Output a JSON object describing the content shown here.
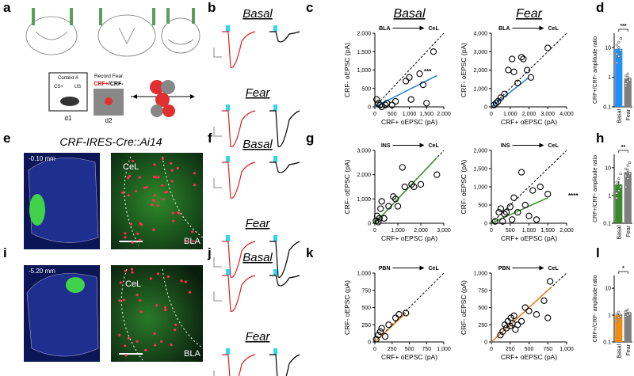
{
  "panel_labels": [
    "a",
    "b",
    "c",
    "d",
    "e",
    "f",
    "g",
    "h",
    "i",
    "j",
    "k",
    "l"
  ],
  "panel_a": {
    "context": "Context A",
    "cs": "CS+",
    "us": "US",
    "day1": "d1",
    "day2": "d2",
    "record": "Record Fear",
    "positive": "CRF+",
    "negative": "/CRF-"
  },
  "panel_e": {
    "title": "CRF-IRES-Cre::Ai14",
    "coordinate": "-0.10 mm",
    "region_1": "CeL",
    "region_2": "BLA"
  },
  "panel_i": {
    "coordinate": "-5.20 mm",
    "region_1": "CeL",
    "region_2": "BLA"
  },
  "traces": {
    "b": [
      "Basal",
      "Fear"
    ],
    "f": [
      "Basal",
      "Fear"
    ],
    "j": [
      "Basal",
      "Fear"
    ]
  },
  "chart_data": [
    {
      "type": "scatter",
      "title": "Basal",
      "pathway": [
        "BLA",
        "CeL"
      ],
      "xlabel": "CRF+ oEPSC (pA)",
      "ylabel": "CRF- oEPSC (pA)",
      "xlim": [
        0,
        2000
      ],
      "ylim": [
        0,
        2000
      ],
      "xticks": [
        0,
        500,
        {
          "value": 1000,
          "label": "1,000"
        },
        {
          "value": 1500,
          "label": "1,500"
        },
        {
          "value": 2000,
          "label": "2,000"
        }
      ],
      "yticks": [
        0,
        500,
        {
          "value": 1000,
          "label": "1,000"
        },
        {
          "value": 1500,
          "label": "1,500"
        },
        {
          "value": 2000,
          "label": "2,000"
        }
      ],
      "x": [
        50,
        100,
        150,
        200,
        300,
        350,
        500,
        600,
        900,
        1000,
        1050,
        1300,
        1400,
        1500,
        1700
      ],
      "y": [
        200,
        100,
        50,
        0,
        50,
        100,
        50,
        150,
        700,
        800,
        200,
        900,
        600,
        100,
        1500
      ],
      "fit": {
        "x": [
          0,
          1800
        ],
        "y": [
          0,
          850
        ]
      },
      "color": "#1a7fd6",
      "annotation": "***"
    },
    {
      "type": "scatter",
      "title": "Fear",
      "pathway": [
        "BLA",
        "CeL"
      ],
      "xlabel": "CRF+ oEPSC (pA)",
      "ylabel": "CRF- oEPSC (pA)",
      "xlim": [
        0,
        4000
      ],
      "ylim": [
        0,
        4000
      ],
      "xticks": [
        0,
        {
          "value": 1000,
          "label": "1,000"
        },
        {
          "value": 2000,
          "label": "2,000"
        },
        {
          "value": 3000,
          "label": "3,000"
        },
        {
          "value": 4000,
          "label": "4,000"
        }
      ],
      "yticks": [
        0,
        {
          "value": 1000,
          "label": "1,000"
        },
        {
          "value": 2000,
          "label": "2,000"
        },
        {
          "value": 3000,
          "label": "3,000"
        },
        {
          "value": 4000,
          "label": "4,000"
        }
      ],
      "x": [
        150,
        250,
        350,
        500,
        700,
        900,
        1100,
        1200,
        1400,
        1600,
        1700,
        1900,
        2100,
        3000
      ],
      "y": [
        100,
        200,
        300,
        500,
        700,
        2000,
        2600,
        1900,
        1300,
        2700,
        2600,
        2000,
        1600,
        3200
      ],
      "fit": {
        "x": [
          0,
          2000
        ],
        "y": [
          0,
          1600
        ]
      },
      "color": "#1a7fd6"
    },
    {
      "type": "bar",
      "log_scale": true,
      "ylabel": "CRF+/CRF- amplitude ratio",
      "categories": [
        "Basal",
        "Fear"
      ],
      "values": [
        9,
        0.9
      ],
      "errors": [
        2,
        0.1
      ],
      "points": [
        [
          3,
          5,
          8,
          12,
          15,
          20,
          6,
          10
        ],
        [
          0.5,
          0.7,
          0.9,
          1.1,
          1.3,
          0.8,
          0.6,
          1
        ]
      ],
      "colors": [
        "#1e90ff",
        "#7f7f7f"
      ],
      "ylim": [
        0.1,
        30
      ],
      "yticks": [
        0.1,
        1,
        10
      ],
      "annotation": "***"
    },
    {
      "type": "scatter",
      "pathway": [
        "INS",
        "CeL"
      ],
      "xlabel": "CRF+ oEPSC (pA)",
      "ylabel": "CRF- oEPSC (pA)",
      "xlim": [
        0,
        3000
      ],
      "ylim": [
        0,
        3000
      ],
      "xticks": [
        0,
        {
          "value": 1000,
          "label": "1,000"
        },
        {
          "value": 2000,
          "label": "2,000"
        },
        {
          "value": 3000,
          "label": "3,000"
        }
      ],
      "yticks": [
        0,
        {
          "value": 1000,
          "label": "1,000"
        },
        {
          "value": 2000,
          "label": "2,000"
        },
        {
          "value": 3000,
          "label": "3,000"
        }
      ],
      "x": [
        50,
        100,
        150,
        200,
        250,
        300,
        400,
        600,
        800,
        900,
        1000,
        1200,
        1300,
        1600,
        1700,
        2000,
        2700
      ],
      "y": [
        100,
        300,
        50,
        200,
        600,
        900,
        200,
        700,
        1100,
        1000,
        700,
        2300,
        1500,
        1600,
        1500,
        1600,
        2000
      ],
      "fit": {
        "x": [
          0,
          2700
        ],
        "y": [
          0,
          2700
        ]
      },
      "color": "#3a8a2a"
    },
    {
      "type": "scatter",
      "pathway": [
        "INS",
        "CeL"
      ],
      "xlabel": "CRF+ oEPSC (pA)",
      "ylabel": "CRF- oEPSC (pA)",
      "xlim": [
        0,
        2000
      ],
      "ylim": [
        0,
        2000
      ],
      "xticks": [
        0,
        500,
        {
          "value": 1000,
          "label": "1,000"
        },
        {
          "value": 1500,
          "label": "1,500"
        },
        {
          "value": 2000,
          "label": "2,000"
        }
      ],
      "yticks": [
        0,
        500,
        {
          "value": 1000,
          "label": "1,000"
        },
        {
          "value": 1500,
          "label": "1,500"
        },
        {
          "value": 2000,
          "label": "2,000"
        }
      ],
      "x": [
        100,
        200,
        250,
        300,
        350,
        400,
        500,
        550,
        600,
        700,
        800,
        900,
        1000,
        1100,
        1200,
        1300,
        1500
      ],
      "y": [
        50,
        300,
        400,
        50,
        250,
        300,
        450,
        100,
        700,
        300,
        1400,
        500,
        200,
        900,
        100,
        1000,
        800
      ],
      "fit": {
        "x": [
          0,
          1500
        ],
        "y": [
          0,
          700
        ]
      },
      "color": "#3a8a2a",
      "annotation": "****"
    },
    {
      "type": "bar",
      "log_scale": true,
      "ylabel": "CRF+/CRF- amplitude ratio",
      "categories": [
        "Basal",
        "Fear"
      ],
      "values": [
        2.5,
        7
      ],
      "errors": [
        0.7,
        1.5
      ],
      "points": [
        [
          0.8,
          1.5,
          2,
          3,
          4,
          6,
          1.2
        ],
        [
          2,
          4,
          6,
          9,
          12,
          15,
          5,
          8
        ]
      ],
      "colors": [
        "#3a8a2a",
        "#7f7f7f"
      ],
      "ylim": [
        0.1,
        30
      ],
      "yticks": [
        0.1,
        1,
        10
      ],
      "annotation": "**"
    },
    {
      "type": "scatter",
      "pathway": [
        "PBN",
        "CeL"
      ],
      "xlabel": "CRF+ oEPSC (pA)",
      "ylabel": "CRF- oEPSC (pA)",
      "xlim": [
        0,
        1000
      ],
      "ylim": [
        0,
        1000
      ],
      "xticks": [
        0,
        250,
        500,
        750,
        {
          "value": 1000,
          "label": "1,000"
        }
      ],
      "yticks": [
        0,
        250,
        500,
        750,
        {
          "value": 1000,
          "label": "1,000"
        }
      ],
      "x": [
        20,
        50,
        80,
        100,
        150,
        200,
        300,
        350,
        450
      ],
      "y": [
        40,
        100,
        150,
        200,
        80,
        250,
        350,
        400,
        420
      ],
      "fit": {
        "x": [
          0,
          450
        ],
        "y": [
          0,
          420
        ]
      },
      "color": "#e07a10"
    },
    {
      "type": "scatter",
      "pathway": [
        "PBN",
        "CeL"
      ],
      "xlabel": "CRF+ oEPSC (pA)",
      "ylabel": "CRF- oEPSC (pA)",
      "xlim": [
        0,
        1000
      ],
      "ylim": [
        0,
        1000
      ],
      "xticks": [
        0,
        250,
        500,
        750,
        {
          "value": 1000,
          "label": "1,000"
        }
      ],
      "yticks": [
        0,
        250,
        500,
        750,
        {
          "value": 1000,
          "label": "1,000"
        }
      ],
      "x": [
        120,
        150,
        180,
        200,
        220,
        250,
        260,
        280,
        300,
        320,
        350,
        400,
        450,
        500,
        600,
        700,
        750,
        780
      ],
      "y": [
        100,
        150,
        250,
        200,
        300,
        230,
        350,
        270,
        380,
        180,
        250,
        300,
        500,
        450,
        400,
        600,
        350,
        880
      ],
      "fit": {
        "x": [
          0,
          800
        ],
        "y": [
          0,
          800
        ]
      },
      "color": "#e07a10"
    },
    {
      "type": "bar",
      "log_scale": true,
      "ylabel": "CRF+/CRF- amplitude ratio",
      "categories": [
        "Basal",
        "Fear"
      ],
      "values": [
        1,
        1.2
      ],
      "errors": [
        0.1,
        0.1
      ],
      "points": [
        [
          0.6,
          0.8,
          1,
          1.1,
          1.3,
          0.9
        ],
        [
          0.9,
          1,
          1.2,
          1.4,
          1.6,
          1.1,
          1.3
        ]
      ],
      "colors": [
        "#f08a10",
        "#7f7f7f"
      ],
      "ylim": [
        0.1,
        30
      ],
      "yticks": [
        0.1,
        1,
        10
      ],
      "annotation": "*"
    }
  ]
}
